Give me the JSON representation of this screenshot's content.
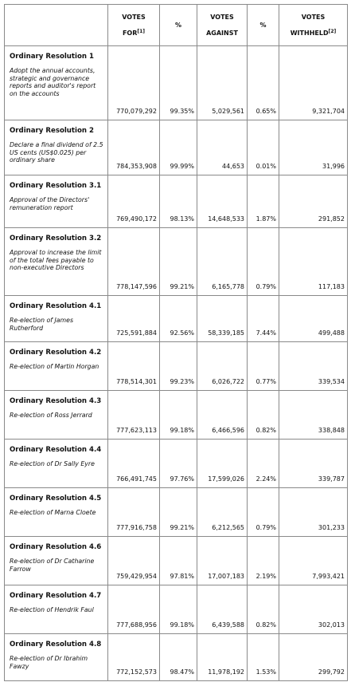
{
  "table": {
    "header": [
      {
        "text": ""
      },
      {
        "text": "VOTES FOR",
        "sup": "[1]"
      },
      {
        "text": "%"
      },
      {
        "text": "VOTES AGAINST"
      },
      {
        "text": "%"
      },
      {
        "text": "VOTES WITHHELD",
        "sup": "[2]"
      }
    ],
    "rows": [
      {
        "title": "Ordinary Resolution 1",
        "description": "Adopt the annual accounts, strategic and governance reports and auditor's report on the accounts",
        "values": [
          "770,079,292",
          "99.35%",
          "5,029,561",
          "0.65%",
          "9,321,704"
        ]
      },
      {
        "title": "Ordinary Resolution 2",
        "description": "Declare a final dividend of 2.5 US cents (US$0.025) per ordinary share",
        "values": [
          "784,353,908",
          "99.99%",
          "44,653",
          "0.01%",
          "31,996"
        ]
      },
      {
        "title": "Ordinary Resolution 3.1",
        "description": "Approval of the Directors' remuneration report",
        "values": [
          "769,490,172",
          "98.13%",
          "14,648,533",
          "1.87%",
          "291,852"
        ]
      },
      {
        "title": "Ordinary Resolution 3.2",
        "description": "Approval to increase the limit of the total fees payable to non-executive Directors",
        "values": [
          "778,147,596",
          "99.21%",
          "6,165,778",
          "0.79%",
          "117,183"
        ]
      },
      {
        "title": "Ordinary Resolution 4.1",
        "description": "Re-election of James Rutherford",
        "values": [
          "725,591,884",
          "92.56%",
          "58,339,185",
          "7.44%",
          "499,488"
        ]
      },
      {
        "title": "Ordinary Resolution 4.2",
        "description": "Re-election of Martin Horgan",
        "values": [
          "778,514,301",
          "99.23%",
          "6,026,722",
          "0.77%",
          "339,534"
        ]
      },
      {
        "title": "Ordinary Resolution 4.3",
        "description": "Re-election of Ross Jerrard",
        "values": [
          "777,623,113",
          "99.18%",
          "6,466,596",
          "0.82%",
          "338,848"
        ]
      },
      {
        "title": "Ordinary Resolution 4.4",
        "description": "Re-election of Dr Sally Eyre",
        "values": [
          "766,491,745",
          "97.76%",
          "17,599,026",
          "2.24%",
          "339,787"
        ]
      },
      {
        "title": "Ordinary Resolution 4.5",
        "description": "Re-election of Marna Cloete",
        "values": [
          "777,916,758",
          "99.21%",
          "6,212,565",
          "0.79%",
          "301,233"
        ]
      },
      {
        "title": "Ordinary Resolution 4.6",
        "description": "Re-election of Dr Catharine Farrow",
        "values": [
          "759,429,954",
          "97.81%",
          "17,007,183",
          "2.19%",
          "7,993,421"
        ]
      },
      {
        "title": "Ordinary Resolution 4.7",
        "description": "Re-election of Hendrik Faul",
        "values": [
          "777,688,956",
          "99.18%",
          "6,439,588",
          "0.82%",
          "302,013"
        ]
      },
      {
        "title": "Ordinary Resolution 4.8",
        "description": "Re-election of Dr Ibrahim Fawzy",
        "values": [
          "772,152,573",
          "98.47%",
          "11,978,192",
          "1.53%",
          "299,792"
        ]
      }
    ]
  }
}
